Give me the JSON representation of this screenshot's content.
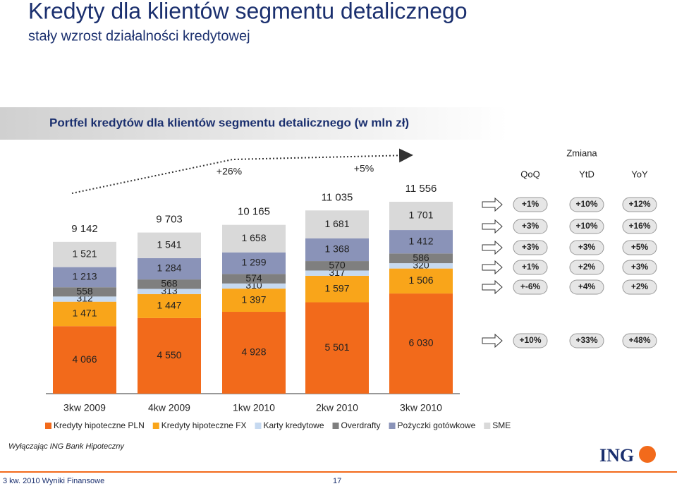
{
  "header": {
    "title": "Kredyty dla klientów segmentu detalicznego",
    "subtitle": "stały wzrost działalności kredytowej"
  },
  "chart_data": {
    "type": "bar",
    "stacked": true,
    "title": "Portfel kredytów dla klientów segmentu detalicznego (w mln zł)",
    "categories": [
      "3kw 2009",
      "4kw 2009",
      "1kw 2010",
      "2kw 2010",
      "3kw 2010"
    ],
    "series": [
      {
        "name": "Kredyty hipoteczne PLN",
        "color": "#f26a1b",
        "values": [
          4066,
          4550,
          4928,
          5501,
          6030
        ],
        "value_labels": [
          "4 066",
          "4 550",
          "4 928",
          "5 501",
          "6 030"
        ]
      },
      {
        "name": "Kredyty hipoteczne FX",
        "color": "#f9a51a",
        "values": [
          1471,
          1447,
          1397,
          1597,
          1506
        ],
        "value_labels": [
          "1 471",
          "1 447",
          "1 397",
          "1 597",
          "1 506"
        ]
      },
      {
        "name": "Karty kredytowe",
        "color": "#c6d9f0",
        "values": [
          312,
          313,
          310,
          317,
          320
        ]
      },
      {
        "name": "Overdrafty",
        "color": "#7f7f7f",
        "values": [
          558,
          568,
          574,
          570,
          586
        ]
      },
      {
        "name": "Pożyczki gotówkowe",
        "color": "#8a93b8",
        "values": [
          1213,
          1284,
          1299,
          1368,
          1412
        ],
        "value_labels": [
          "1 213",
          "1 284",
          "1 299",
          "1 368",
          "1 412"
        ]
      },
      {
        "name": "SME",
        "color": "#d9d9d9",
        "values": [
          1521,
          1541,
          1658,
          1681,
          1701
        ],
        "value_labels": [
          "1 521",
          "1 541",
          "1 658",
          "1 681",
          "1 701"
        ]
      }
    ],
    "totals": [
      {
        "value": 9142,
        "label": "9 142"
      },
      {
        "value": 9703,
        "label": "9 703"
      },
      {
        "value": 10165,
        "label": "10 165"
      },
      {
        "value": 11035,
        "label": "11 035"
      },
      {
        "value": 11556,
        "label": "11 556"
      }
    ],
    "growth_labels": [
      "+26%",
      "+5%"
    ]
  },
  "changes": {
    "title": "Zmiana",
    "columns": [
      "QoQ",
      "YtD",
      "YoY"
    ],
    "rows": [
      [
        "+1%",
        "+10%",
        "+12%"
      ],
      [
        "+3%",
        "+10%",
        "+16%"
      ],
      [
        "+3%",
        "+3%",
        "+5%"
      ],
      [
        "+1%",
        "+2%",
        "+3%"
      ],
      [
        "+-6%",
        "+4%",
        "+2%"
      ],
      [
        "+10%",
        "+33%",
        "+48%"
      ]
    ]
  },
  "footnote": "Wyłączając ING Bank Hipoteczny",
  "footer": {
    "text": "3 kw. 2010 Wyniki Finansowe",
    "page": "17",
    "logo": "ING"
  }
}
